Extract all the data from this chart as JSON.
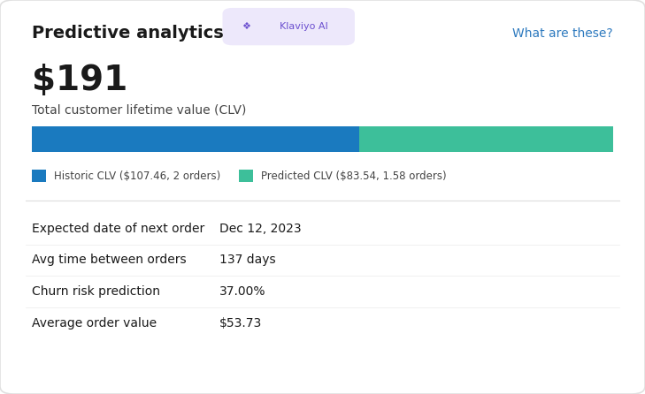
{
  "title": "Predictive analytics",
  "klaviyo_badge": "Klaviyo AI",
  "link_text": "What are these?",
  "clv_value": "$191",
  "clv_label": "Total customer lifetime value (CLV)",
  "historic_clv": 107.46,
  "predicted_clv": 83.54,
  "total_clv": 191.0,
  "historic_color": "#1a7abf",
  "predicted_color": "#3dbf9a",
  "historic_label": "Historic CLV ($107.46, 2 orders)",
  "predicted_label": "Predicted CLV ($83.54, 1.58 orders)",
  "badge_bg": "#ede8fb",
  "badge_text_color": "#6b4fcf",
  "link_color": "#2e7abf",
  "stats": [
    {
      "label": "Expected date of next order",
      "value": "Dec 12, 2023"
    },
    {
      "label": "Avg time between orders",
      "value": "137 days"
    },
    {
      "label": "Churn risk prediction",
      "value": "37.00%"
    },
    {
      "label": "Average order value",
      "value": "$53.73"
    }
  ],
  "bg_color": "#ffffff",
  "card_border": "#e0e0e0",
  "text_dark": "#1a1a1a",
  "text_mid": "#444444",
  "text_light": "#555555",
  "fig_width": 7.29,
  "fig_height": 4.46,
  "dpi": 100
}
